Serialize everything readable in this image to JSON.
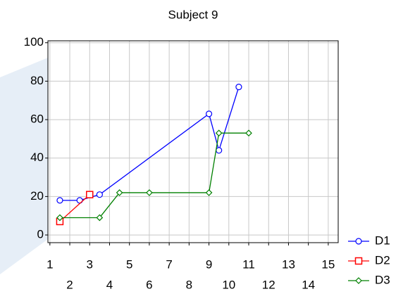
{
  "chart_data": {
    "type": "line",
    "title": "Subject 9",
    "xlim": [
      0.9,
      15.5
    ],
    "ylim": [
      -4,
      101
    ],
    "xticks": [
      1,
      2,
      3,
      4,
      5,
      6,
      7,
      8,
      9,
      10,
      11,
      12,
      13,
      14,
      15
    ],
    "yticks": [
      0,
      20,
      40,
      60,
      80,
      100
    ],
    "grid": true,
    "legend": "lower right",
    "series": [
      {
        "name": "D1",
        "color": "#0000ff",
        "marker": "circle",
        "x": [
          1.5,
          2.5,
          3.5,
          9,
          9.5,
          10.5
        ],
        "values": [
          18,
          18,
          21,
          63,
          44,
          77
        ]
      },
      {
        "name": "D2",
        "color": "#ff0000",
        "marker": "square",
        "x": [
          1.5,
          3
        ],
        "values": [
          7,
          21
        ]
      },
      {
        "name": "D3",
        "color": "#008000",
        "marker": "diamond",
        "x": [
          1.5,
          3.5,
          4.5,
          6,
          9,
          9.5,
          11
        ],
        "values": [
          9,
          9,
          22,
          22,
          22,
          53,
          53
        ]
      }
    ]
  }
}
